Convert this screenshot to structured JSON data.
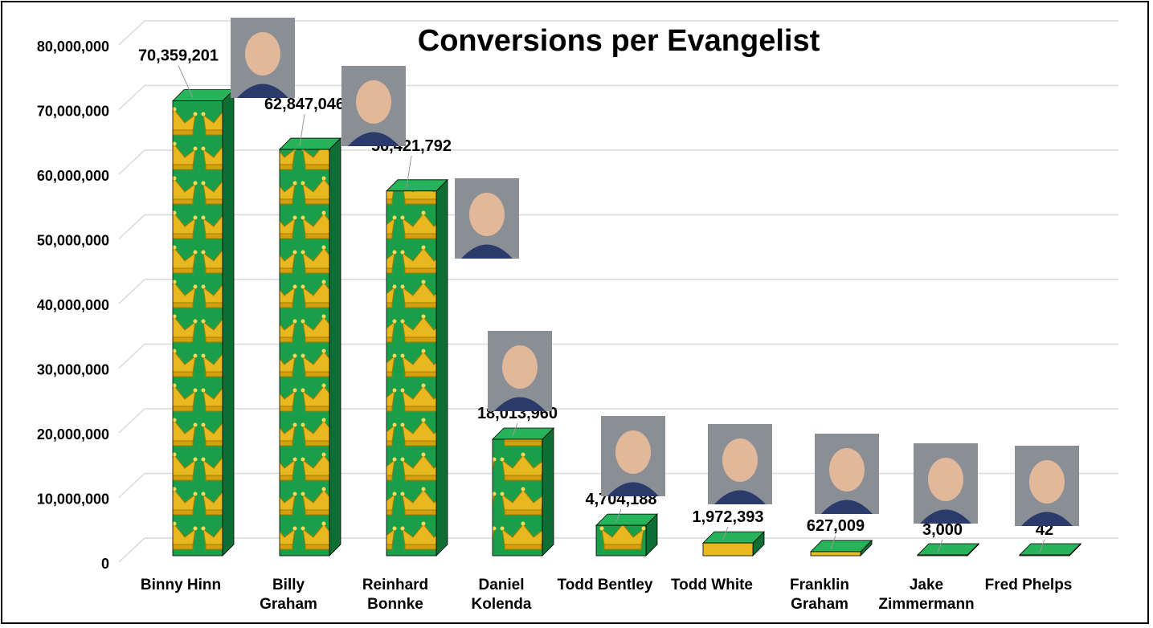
{
  "chart_data": {
    "type": "bar",
    "title": "Conversions per Evangelist",
    "xlabel": "",
    "ylabel": "",
    "ylim": [
      0,
      80000000
    ],
    "y_ticks": [
      "0",
      "10,000,000",
      "20,000,000",
      "30,000,000",
      "40,000,000",
      "50,000,000",
      "60,000,000",
      "70,000,000",
      "80,000,000"
    ],
    "grid": true,
    "legend": "none",
    "categories": [
      "Binny Hinn",
      "Billy Graham",
      "Reinhard Bonnke",
      "Daniel Kolenda",
      "Todd Bentley",
      "Todd White",
      "Franklin Graham",
      "Jake Zimmermann",
      "Fred Phelps"
    ],
    "category_lines": [
      [
        "Binny Hinn"
      ],
      [
        "Billy",
        "Graham"
      ],
      [
        "Reinhard",
        "Bonnke"
      ],
      [
        "Daniel",
        "Kolenda"
      ],
      [
        "Todd Bentley"
      ],
      [
        "Todd White"
      ],
      [
        "Franklin",
        "Graham"
      ],
      [
        "Jake",
        "Zimmermann"
      ],
      [
        "Fred Phelps"
      ]
    ],
    "values": [
      70359201,
      62847046,
      56421792,
      18013960,
      4704188,
      1972393,
      627009,
      3000,
      42
    ],
    "data_labels": [
      "70,359,201",
      "62,847,046",
      "56,421,792",
      "18,013,960",
      "4,704,188",
      "1,972,393",
      "627,009",
      "3,000",
      "42"
    ],
    "bar_fill": "crown-icon pattern",
    "colors": {
      "bar_green": "#1a9e4a",
      "bar_top": "#27b35a",
      "bar_side": "#0f6e33",
      "crown_gold": "#e8b820",
      "grid": "#d9d9d9"
    },
    "portraits": [
      "portrait-icon",
      "portrait-icon",
      "portrait-icon",
      "portrait-icon",
      "portrait-icon",
      "portrait-icon",
      "portrait-icon",
      "portrait-icon",
      "portrait-icon"
    ]
  }
}
